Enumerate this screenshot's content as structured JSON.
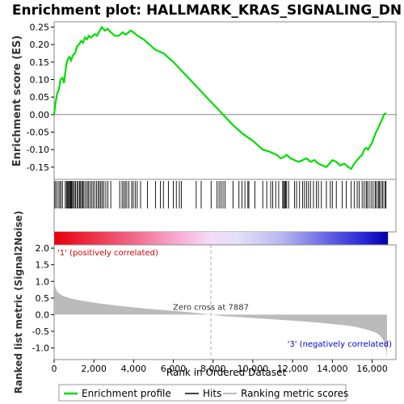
{
  "title": "Enrichment plot: HALLMARK_KRAS_SIGNALING_DN",
  "colors": {
    "es_line": "#00dd00",
    "hits": "#000000",
    "metric_fill": "#bbbbbb",
    "positive_text": "#cc0000",
    "negative_text": "#0000cc"
  },
  "chart_data": {
    "type": "line",
    "xlim": [
      0,
      17200
    ],
    "n_genes": 16800,
    "x_ticks": [
      0,
      2000,
      4000,
      6000,
      8000,
      10000,
      12000,
      14000,
      16000
    ],
    "x_tick_labels": [
      "0",
      "2,000",
      "4,000",
      "6,000",
      "8,000",
      "10,000",
      "12,000",
      "14,000",
      "16,000"
    ],
    "xlabel": "Rank in Ordered Dataset",
    "es_panel": {
      "ylabel": "Enrichment score (ES)",
      "ylim": [
        -0.185,
        0.265
      ],
      "y_ticks": [
        -0.15,
        -0.1,
        -0.05,
        0.0,
        0.05,
        0.1,
        0.15,
        0.2,
        0.25
      ],
      "y_tick_labels": [
        "-0.15",
        "-0.10",
        "-0.05",
        "0.00",
        "0.05",
        "0.10",
        "0.15",
        "0.20",
        "0.25"
      ],
      "series": [
        {
          "name": "Enrichment profile",
          "x": [
            0,
            60,
            150,
            230,
            320,
            420,
            500,
            560,
            620,
            700,
            780,
            850,
            950,
            1050,
            1150,
            1250,
            1350,
            1450,
            1550,
            1650,
            1750,
            1850,
            1950,
            2050,
            2150,
            2250,
            2400,
            2550,
            2700,
            2850,
            3050,
            3250,
            3450,
            3600,
            3750,
            3850,
            4000,
            4200,
            4500,
            4800,
            5100,
            5500,
            6000,
            6500,
            7000,
            7500,
            8000,
            8500,
            9000,
            9500,
            10000,
            10500,
            10800,
            11000,
            11200,
            11400,
            11600,
            11700,
            11900,
            12100,
            12300,
            12500,
            12700,
            12900,
            13100,
            13300,
            13500,
            13700,
            13850,
            14000,
            14200,
            14400,
            14600,
            14800,
            14950,
            15100,
            15250,
            15400,
            15500,
            15600,
            15700,
            15800,
            15900,
            16000,
            16100,
            16200,
            16300,
            16400,
            16500,
            16600,
            16700
          ],
          "y": [
            0.0,
            0.03,
            0.06,
            0.07,
            0.1,
            0.105,
            0.09,
            0.12,
            0.145,
            0.16,
            0.165,
            0.155,
            0.17,
            0.175,
            0.195,
            0.2,
            0.21,
            0.205,
            0.22,
            0.215,
            0.225,
            0.22,
            0.225,
            0.23,
            0.225,
            0.235,
            0.25,
            0.24,
            0.245,
            0.235,
            0.225,
            0.225,
            0.235,
            0.228,
            0.235,
            0.24,
            0.235,
            0.225,
            0.215,
            0.2,
            0.185,
            0.175,
            0.15,
            0.12,
            0.09,
            0.06,
            0.03,
            0.0,
            -0.03,
            -0.055,
            -0.075,
            -0.1,
            -0.105,
            -0.11,
            -0.115,
            -0.125,
            -0.12,
            -0.115,
            -0.125,
            -0.13,
            -0.135,
            -0.13,
            -0.125,
            -0.135,
            -0.13,
            -0.14,
            -0.145,
            -0.15,
            -0.14,
            -0.13,
            -0.135,
            -0.145,
            -0.14,
            -0.15,
            -0.155,
            -0.14,
            -0.13,
            -0.12,
            -0.115,
            -0.1,
            -0.095,
            -0.1,
            -0.09,
            -0.08,
            -0.065,
            -0.05,
            -0.04,
            -0.025,
            -0.015,
            0.0,
            0.005
          ]
        }
      ],
      "hits_positions": [
        40,
        110,
        200,
        280,
        340,
        420,
        560,
        620,
        660,
        700,
        740,
        790,
        830,
        870,
        900,
        960,
        1020,
        1080,
        1150,
        1210,
        1280,
        1330,
        1390,
        1440,
        1500,
        1580,
        1660,
        1720,
        1800,
        1880,
        1960,
        2040,
        2130,
        2210,
        2280,
        2350,
        2420,
        2500,
        2600,
        2700,
        2850,
        3300,
        3420,
        3500,
        3580,
        3660,
        3760,
        3900,
        3980,
        4080,
        4180,
        4350,
        4700,
        5100,
        5350,
        5500,
        5750,
        6000,
        6150,
        6300,
        6400,
        7150,
        7400,
        7900,
        8200,
        8300,
        8400,
        8500,
        8600,
        9000,
        9300,
        9450,
        9600,
        9750,
        9800,
        10100,
        10500,
        10700,
        10900,
        11000,
        11150,
        11300,
        11500,
        11550,
        11600,
        11650,
        11700,
        11800,
        12100,
        12200,
        12350,
        12500,
        12600,
        12700,
        12800,
        12900,
        13050,
        13200,
        13300,
        13450,
        13700,
        13900,
        14000,
        14200,
        14500,
        14700,
        14950,
        15100,
        15250,
        15350,
        15500,
        15600,
        15700,
        15750,
        15850,
        15950,
        16050,
        16150,
        16200,
        16300,
        16350,
        16400,
        16500,
        16550,
        16650,
        16700
      ]
    },
    "metric_panel": {
      "ylabel": "Ranked list metric (Signal2Noise)",
      "ylim": [
        -1.35,
        2.1
      ],
      "y_ticks": [
        -1.0,
        -0.5,
        0.0,
        0.5,
        1.0,
        1.5,
        2.0
      ],
      "y_tick_labels": [
        "-1.0",
        "-0.5",
        "0.0",
        "0.5",
        "1.0",
        "1.5",
        "2.0"
      ],
      "series": [
        {
          "name": "Ranking metric scores",
          "x": [
            0,
            30,
            80,
            150,
            250,
            400,
            600,
            900,
            1300,
            1800,
            2500,
            3500,
            4500,
            5500,
            6500,
            7500,
            7887,
            8500,
            9500,
            10500,
            11500,
            12500,
            13500,
            14000,
            14500,
            15000,
            15400,
            15800,
            16100,
            16300,
            16450,
            16550,
            16620,
            16680,
            16720,
            16750
          ],
          "y": [
            1.0,
            0.9,
            0.78,
            0.7,
            0.64,
            0.58,
            0.53,
            0.48,
            0.43,
            0.38,
            0.32,
            0.25,
            0.19,
            0.14,
            0.09,
            0.03,
            0.0,
            -0.04,
            -0.08,
            -0.12,
            -0.16,
            -0.2,
            -0.25,
            -0.28,
            -0.31,
            -0.35,
            -0.4,
            -0.46,
            -0.52,
            -0.58,
            -0.66,
            -0.75,
            -0.85,
            -0.98,
            -1.15,
            -1.3
          ]
        }
      ],
      "zero_cross_rank": 7887,
      "zero_cross_label": "Zero cross at 7887",
      "positive_label": "'1' (positively correlated)",
      "negative_label": "'3' (negatively correlated)"
    },
    "legend": {
      "placement": "bottom",
      "entries": [
        "Enrichment profile",
        "Hits",
        "Ranking metric scores"
      ]
    }
  }
}
